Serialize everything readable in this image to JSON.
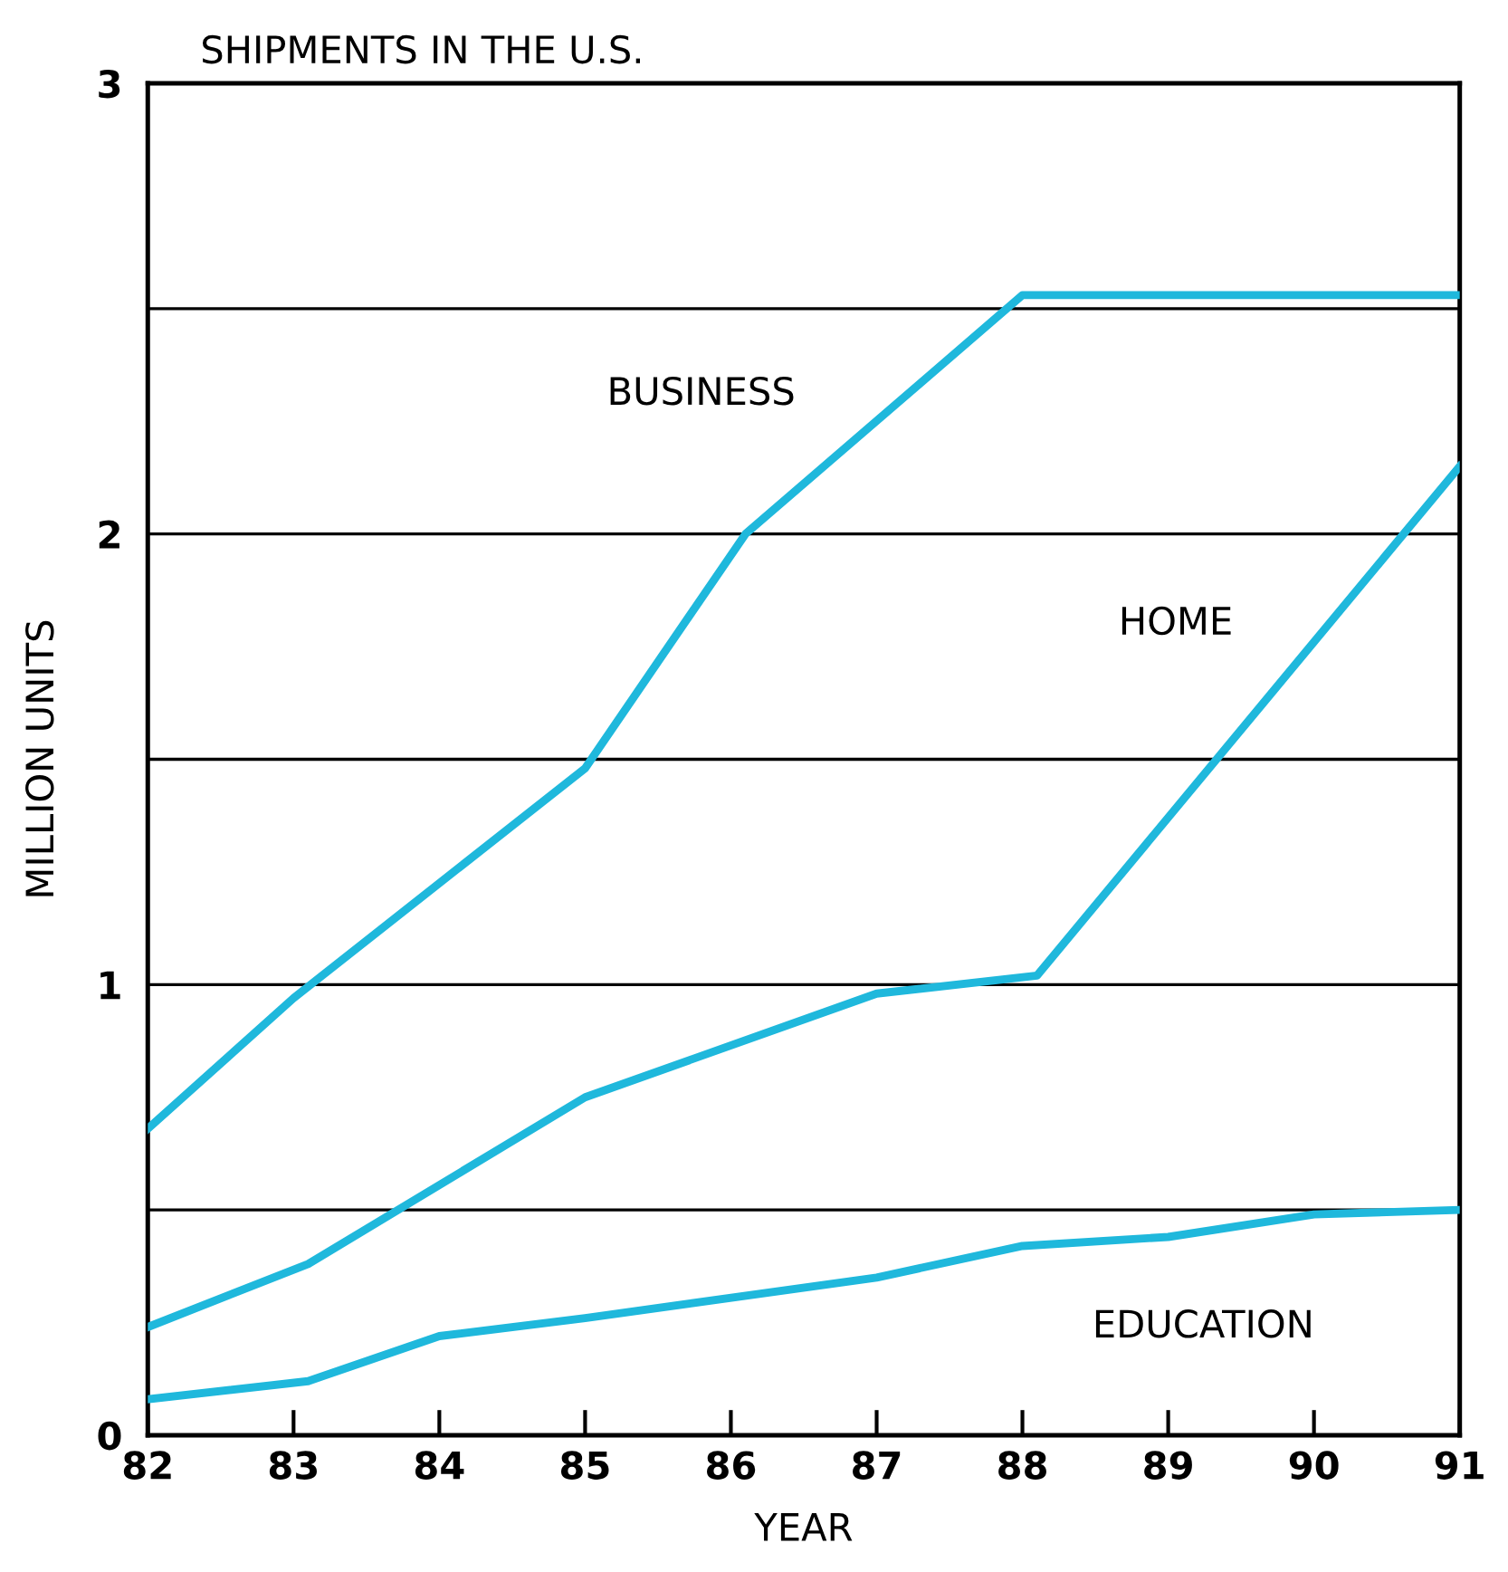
{
  "chart_data": {
    "type": "line",
    "title": "SHIPMENTS IN THE U.S.",
    "xlabel": "YEAR",
    "ylabel": "MILLION UNITS",
    "xlim": [
      82,
      91
    ],
    "ylim": [
      0,
      3
    ],
    "xticks": [
      82,
      83,
      84,
      85,
      86,
      87,
      88,
      89,
      90,
      91
    ],
    "yticks": [
      0,
      {
        "value": 0.5,
        "label": null
      },
      1,
      {
        "value": 1.5,
        "label": null
      },
      2,
      {
        "value": 2.5,
        "label": null
      },
      3
    ],
    "grid": "y",
    "marker": "none",
    "line_style": "solid",
    "legend": false,
    "series": [
      {
        "name": "BUSINESS",
        "color": "#1fb8dc",
        "x": [
          82,
          83,
          85,
          86.1,
          88,
          91
        ],
        "values": [
          0.68,
          0.97,
          1.48,
          2.0,
          2.53,
          2.53
        ]
      },
      {
        "name": "HOME",
        "color": "#1fb8dc",
        "x": [
          82,
          83.1,
          85,
          87,
          88.1,
          91
        ],
        "values": [
          0.24,
          0.38,
          0.75,
          0.98,
          1.02,
          2.15
        ]
      },
      {
        "name": "EDUCATION",
        "color": "#1fb8dc",
        "x": [
          82,
          83.1,
          84,
          85,
          87,
          88,
          89,
          90,
          91
        ],
        "values": [
          0.08,
          0.12,
          0.22,
          0.26,
          0.35,
          0.42,
          0.44,
          0.49,
          0.5
        ]
      }
    ]
  }
}
